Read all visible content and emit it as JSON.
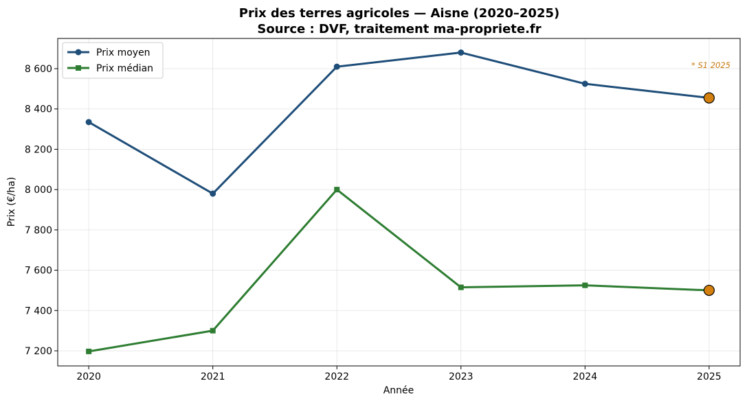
{
  "chart_data": {
    "type": "line",
    "title": "Prix des terres agricoles — Aisne (2020–2025)",
    "subtitle": "Source : DVF, traitement ma-propriete.fr",
    "xlabel": "Année",
    "ylabel": "Prix (€/ha)",
    "x": [
      "2020",
      "2021",
      "2022",
      "2023",
      "2024",
      "2025"
    ],
    "xlim": [
      2019.75,
      2025.25
    ],
    "ylim": [
      7125,
      8750
    ],
    "yticks": [
      7200,
      7400,
      7600,
      7800,
      8000,
      8200,
      8400,
      8600
    ],
    "ytick_labels": [
      "7 200",
      "7 400",
      "7 600",
      "7 800",
      "8 000",
      "8 200",
      "8 400",
      "8 600"
    ],
    "grid": true,
    "legend_position": "top-left",
    "series": [
      {
        "name": "Prix moyen",
        "values": [
          8335,
          7980,
          8610,
          8680,
          8525,
          8455
        ],
        "color": "#1f4e79",
        "marker": "circle"
      },
      {
        "name": "Prix médian",
        "values": [
          7197,
          7300,
          8000,
          7515,
          7525,
          7500
        ],
        "color": "#2e7d32",
        "marker": "square"
      }
    ],
    "highlight": {
      "x": "2025",
      "color": "#d4800f"
    },
    "annotation": {
      "text": "* S1 2025",
      "color": "#c77a10"
    }
  }
}
